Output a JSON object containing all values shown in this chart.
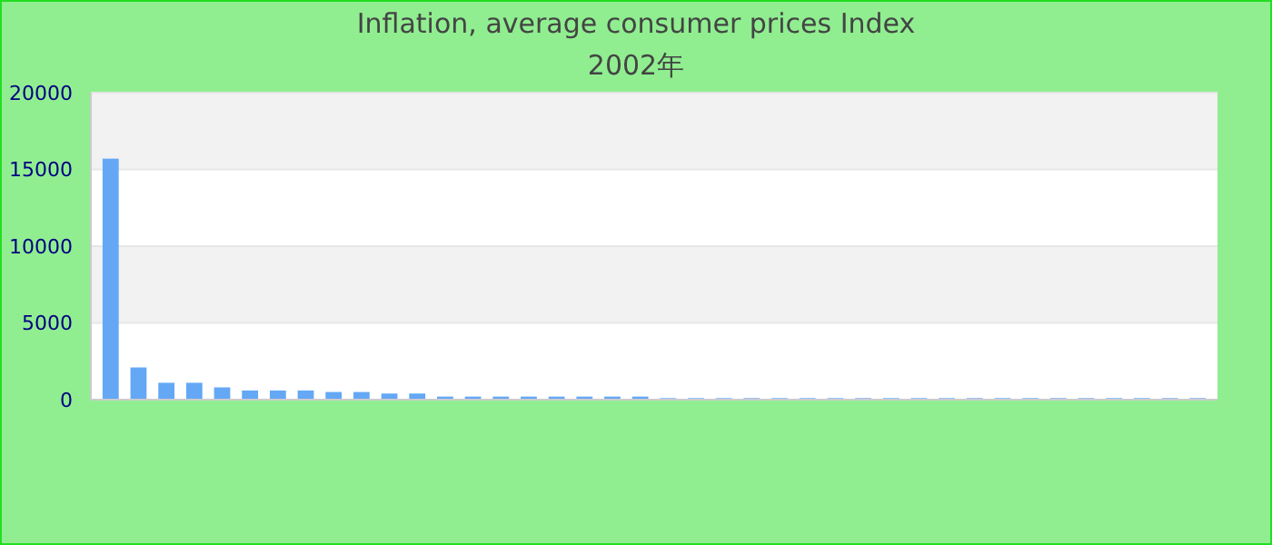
{
  "chart_data": {
    "type": "bar",
    "title": "Inflation, average consumer prices  Index",
    "subtitle": "2002年",
    "categories": [
      null,
      null,
      null,
      null,
      null,
      null,
      null,
      null,
      null,
      null,
      null,
      null,
      null,
      null,
      null,
      null,
      null,
      null,
      null,
      null,
      null,
      null,
      null,
      null,
      null,
      null,
      null,
      null,
      null,
      null,
      null,
      null,
      null,
      null,
      null,
      null,
      null,
      null,
      null,
      null
    ],
    "values": [
      15700,
      2100,
      1100,
      1100,
      800,
      600,
      600,
      600,
      500,
      500,
      400,
      400,
      200,
      200,
      200,
      200,
      200,
      200,
      200,
      200,
      100,
      100,
      100,
      100,
      100,
      100,
      100,
      100,
      100,
      100,
      100,
      100,
      100,
      100,
      100,
      100,
      100,
      100,
      100,
      100
    ],
    "color": "#64a8f5",
    "ylim": [
      0,
      20000
    ],
    "yticks": [
      0,
      5000,
      10000,
      15000,
      20000
    ],
    "grid": true
  }
}
